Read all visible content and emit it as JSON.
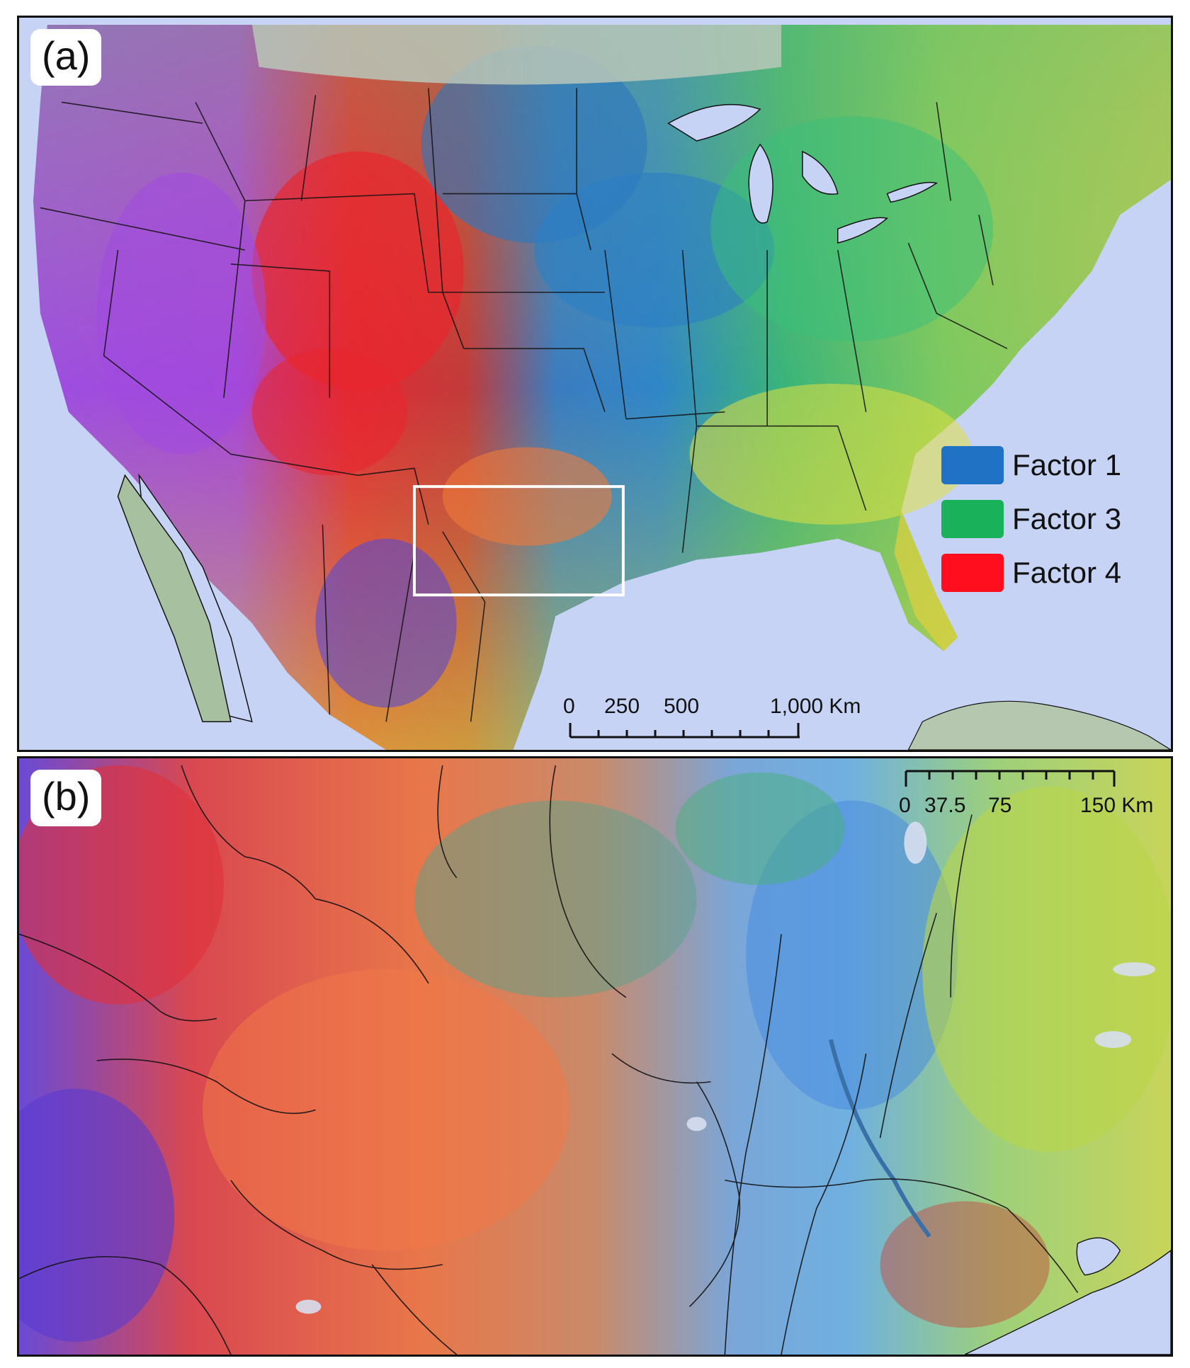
{
  "panels": {
    "a": {
      "label": "(a)",
      "legend": [
        {
          "label": "Factor 1",
          "color": "#1f72c4"
        },
        {
          "label": "Factor 3",
          "color": "#19b25a"
        },
        {
          "label": "Factor 4",
          "color": "#ff0f1e"
        }
      ],
      "scale": {
        "ticks": [
          "0",
          "250",
          "500",
          "1,000 Km"
        ]
      }
    },
    "b": {
      "label": "(b)",
      "scale": {
        "ticks": [
          "0",
          "37.5",
          "75",
          "150 Km"
        ]
      }
    }
  },
  "colors": {
    "ocean": "#c6d3f5",
    "inset_box": "#ffffff",
    "boundary": "#111111"
  }
}
